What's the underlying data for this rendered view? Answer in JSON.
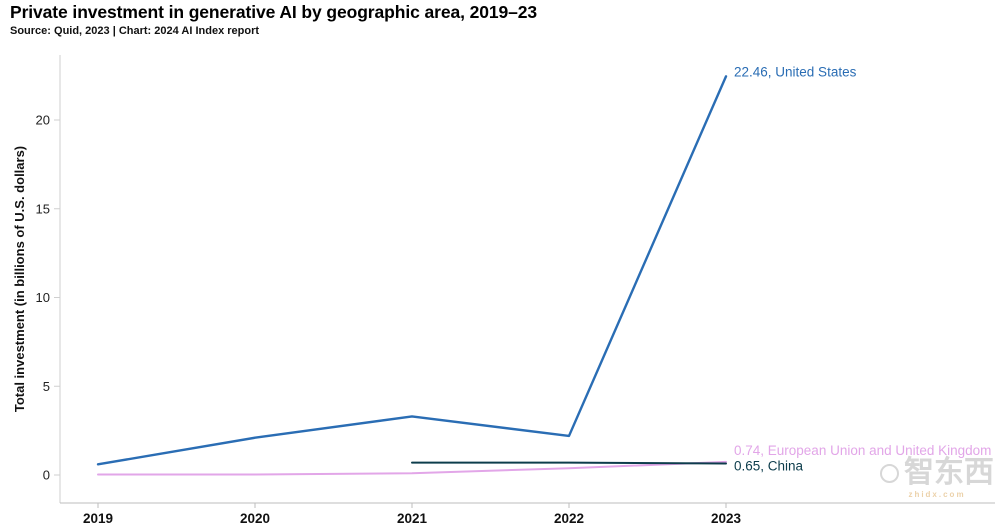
{
  "header": {
    "title": "Private investment in generative AI by geographic area, 2019–23",
    "subtitle": "Source: Quid, 2023 | Chart: 2024 AI Index report"
  },
  "watermark": {
    "text": "智东西",
    "subtext": "zhidx.com"
  },
  "chart_data": {
    "type": "line",
    "title": "Private investment in generative AI by geographic area, 2019–23",
    "x": [
      "2019",
      "2020",
      "2021",
      "2022",
      "2023"
    ],
    "xlabel": "",
    "ylabel": "Total investment (in billions of U.S. dollars)",
    "ylim": [
      0,
      22.5
    ],
    "yticks": [
      0,
      5,
      10,
      15,
      20
    ],
    "grid": false,
    "legend_position": "end-of-line-labels",
    "series": [
      {
        "name": "United States",
        "color": "#2a6db4",
        "width": 2.4,
        "values": [
          0.6,
          2.1,
          3.3,
          2.2,
          22.46
        ],
        "final_value": 22.46,
        "label": "22.46, United States",
        "label_dy": -4
      },
      {
        "name": "European Union and United Kingdom",
        "color": "#e2a6e8",
        "width": 2,
        "values": [
          0.03,
          0.03,
          0.1,
          0.38,
          0.74
        ],
        "final_value": 0.74,
        "label": "0.74, European Union and United Kingdom",
        "label_dy": -11
      },
      {
        "name": "China",
        "color": "#0d3d4c",
        "width": 2,
        "values": [
          null,
          null,
          0.7,
          0.7,
          0.65
        ],
        "final_value": 0.65,
        "label": "0.65, China",
        "label_dy": 3
      }
    ]
  }
}
